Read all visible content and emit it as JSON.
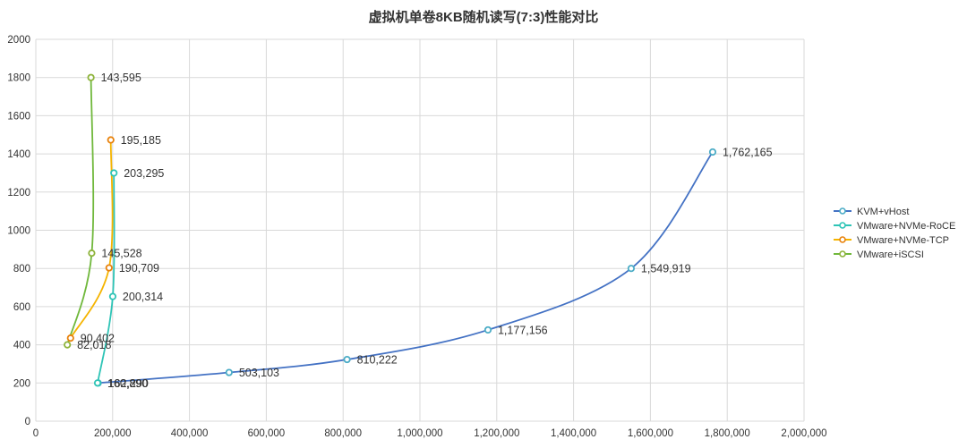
{
  "chart_data": {
    "type": "scatter",
    "title": "虚拟机单卷8KB随机读写(7:3)性能对比",
    "xlim": [
      0,
      2000000
    ],
    "ylim": [
      0,
      2000
    ],
    "x_ticks": [
      0,
      200000,
      400000,
      600000,
      800000,
      1000000,
      1200000,
      1400000,
      1600000,
      1800000,
      2000000
    ],
    "y_ticks": [
      0,
      200,
      400,
      600,
      800,
      1000,
      1200,
      1400,
      1600,
      1800,
      2000
    ],
    "x_tick_labels": [
      "0",
      "200,000",
      "400,000",
      "600,000",
      "800,000",
      "1,000,000",
      "1,200,000",
      "1,400,000",
      "1,600,000",
      "1,800,000",
      "2,000,000"
    ],
    "y_tick_labels": [
      "0",
      "200",
      "400",
      "600",
      "800",
      "1000",
      "1200",
      "1400",
      "1600",
      "1800",
      "2000"
    ],
    "grid": true,
    "smooth_lines": true,
    "legend_position": "right",
    "series": [
      {
        "name": "KVM+vHost",
        "color": "#4472C4",
        "marker_color": "#4BACC6",
        "points": [
          {
            "x": 162290,
            "y": 200,
            "label": "162,290"
          },
          {
            "x": 503103,
            "y": 255,
            "label": "503,103"
          },
          {
            "x": 810222,
            "y": 323,
            "label": "810,222"
          },
          {
            "x": 1177156,
            "y": 478,
            "label": "1,177,156"
          },
          {
            "x": 1549919,
            "y": 800,
            "label": "1,549,919"
          },
          {
            "x": 1762165,
            "y": 1410,
            "label": "1,762,165"
          }
        ]
      },
      {
        "name": "VMware+NVMe-RoCE",
        "color": "#2EC4B6",
        "marker_color": "#2EC4B6",
        "points": [
          {
            "x": 160890,
            "y": 200,
            "label": "160,890"
          },
          {
            "x": 200314,
            "y": 653,
            "label": "200,314"
          },
          {
            "x": 203295,
            "y": 1300,
            "label": "203,295"
          }
        ]
      },
      {
        "name": "VMware+NVMe-TCP",
        "color": "#F5B400",
        "marker_color": "#E8820C",
        "points": [
          {
            "x": 90402,
            "y": 435,
            "label": "90,402"
          },
          {
            "x": 190709,
            "y": 803,
            "label": "190,709"
          },
          {
            "x": 195185,
            "y": 1473,
            "label": "195,185"
          }
        ]
      },
      {
        "name": "VMware+iSCSI",
        "color": "#70B83C",
        "marker_color": "#8DB33A",
        "points": [
          {
            "x": 82018,
            "y": 400,
            "label": "82,018"
          },
          {
            "x": 145528,
            "y": 880,
            "label": "145,528"
          },
          {
            "x": 143595,
            "y": 1800,
            "label": "143,595"
          }
        ]
      }
    ]
  }
}
